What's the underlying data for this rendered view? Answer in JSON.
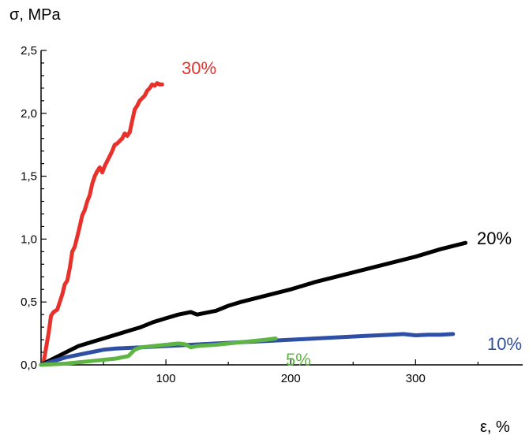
{
  "chart_data": {
    "type": "line",
    "ylabel": "σ, MPa",
    "xlabel": "ε, %",
    "xlim": [
      0,
      370
    ],
    "ylim": [
      0,
      2.5
    ],
    "x_ticks": [
      100,
      200,
      300
    ],
    "x_tick_labels": [
      "100",
      "200",
      "300"
    ],
    "y_ticks": [
      0,
      0.5,
      1.0,
      1.5,
      2.0,
      2.5
    ],
    "y_tick_labels": [
      "0,0",
      "0,5",
      "1,0",
      "1,5",
      "2,0",
      "2,5"
    ],
    "grid": false,
    "legend": "none",
    "series": [
      {
        "name": "30%",
        "color": "#e8312b",
        "x": [
          2,
          6,
          8,
          10,
          13,
          15,
          17,
          19,
          21,
          23,
          25,
          27,
          29,
          31,
          33,
          35,
          37,
          39,
          41,
          43,
          45,
          47,
          49,
          51,
          53,
          55,
          57,
          59,
          61,
          63,
          65,
          67,
          69,
          71,
          73,
          75,
          77,
          79,
          81,
          83,
          85,
          87,
          89,
          91,
          93,
          95,
          97
        ],
        "y": [
          0.02,
          0.25,
          0.39,
          0.42,
          0.44,
          0.5,
          0.56,
          0.64,
          0.67,
          0.77,
          0.9,
          0.94,
          1.02,
          1.1,
          1.19,
          1.23,
          1.3,
          1.35,
          1.44,
          1.5,
          1.54,
          1.57,
          1.53,
          1.58,
          1.62,
          1.66,
          1.7,
          1.75,
          1.76,
          1.78,
          1.8,
          1.84,
          1.82,
          1.85,
          1.94,
          2.03,
          2.06,
          2.1,
          2.12,
          2.14,
          2.18,
          2.2,
          2.23,
          2.22,
          2.24,
          2.23,
          2.23
        ],
        "label": "30%"
      },
      {
        "name": "20%",
        "color": "#000000",
        "x": [
          0,
          10,
          20,
          30,
          40,
          50,
          60,
          70,
          80,
          90,
          100,
          110,
          120,
          125,
          130,
          140,
          150,
          160,
          180,
          200,
          220,
          240,
          260,
          280,
          300,
          320,
          340
        ],
        "y": [
          0,
          0.05,
          0.1,
          0.15,
          0.18,
          0.21,
          0.24,
          0.27,
          0.3,
          0.34,
          0.37,
          0.4,
          0.42,
          0.4,
          0.41,
          0.43,
          0.47,
          0.5,
          0.55,
          0.6,
          0.66,
          0.71,
          0.76,
          0.81,
          0.86,
          0.92,
          0.97
        ],
        "label": "20%"
      },
      {
        "name": "10%",
        "color": "#2e4fa3",
        "x": [
          0,
          10,
          20,
          30,
          40,
          50,
          60,
          80,
          100,
          120,
          140,
          160,
          180,
          200,
          220,
          240,
          260,
          280,
          290,
          300,
          310,
          320,
          330
        ],
        "y": [
          0,
          0.03,
          0.06,
          0.08,
          0.1,
          0.12,
          0.13,
          0.14,
          0.15,
          0.16,
          0.17,
          0.18,
          0.19,
          0.2,
          0.21,
          0.22,
          0.23,
          0.24,
          0.245,
          0.235,
          0.24,
          0.24,
          0.245
        ],
        "label": "10%"
      },
      {
        "name": "5%",
        "color": "#5fb446",
        "x": [
          0,
          20,
          40,
          60,
          70,
          75,
          80,
          90,
          100,
          110,
          115,
          120,
          125,
          140,
          160,
          170,
          180,
          188
        ],
        "y": [
          0,
          0.01,
          0.03,
          0.05,
          0.07,
          0.12,
          0.14,
          0.15,
          0.16,
          0.17,
          0.165,
          0.14,
          0.15,
          0.16,
          0.18,
          0.19,
          0.2,
          0.21
        ],
        "label": "5%"
      }
    ]
  }
}
